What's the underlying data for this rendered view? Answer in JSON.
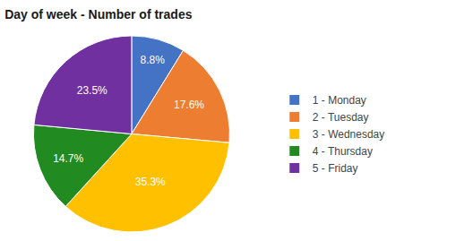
{
  "chart_data": {
    "type": "pie",
    "title": "Day of week - Number of trades",
    "categories": [
      "1 - Monday",
      "2 - Tuesday",
      "3 - Wednesday",
      "4 - Thursday",
      "5 - Friday"
    ],
    "values": [
      8.8,
      17.6,
      35.3,
      14.7,
      23.5
    ],
    "value_labels": [
      "8.8%",
      "17.6%",
      "35.3%",
      "14.7%",
      "23.5%"
    ],
    "colors": [
      "#4472C4",
      "#ED7D31",
      "#FFC000",
      "#218B21",
      "#7030A0"
    ],
    "data_labels": true,
    "legend": "right"
  }
}
